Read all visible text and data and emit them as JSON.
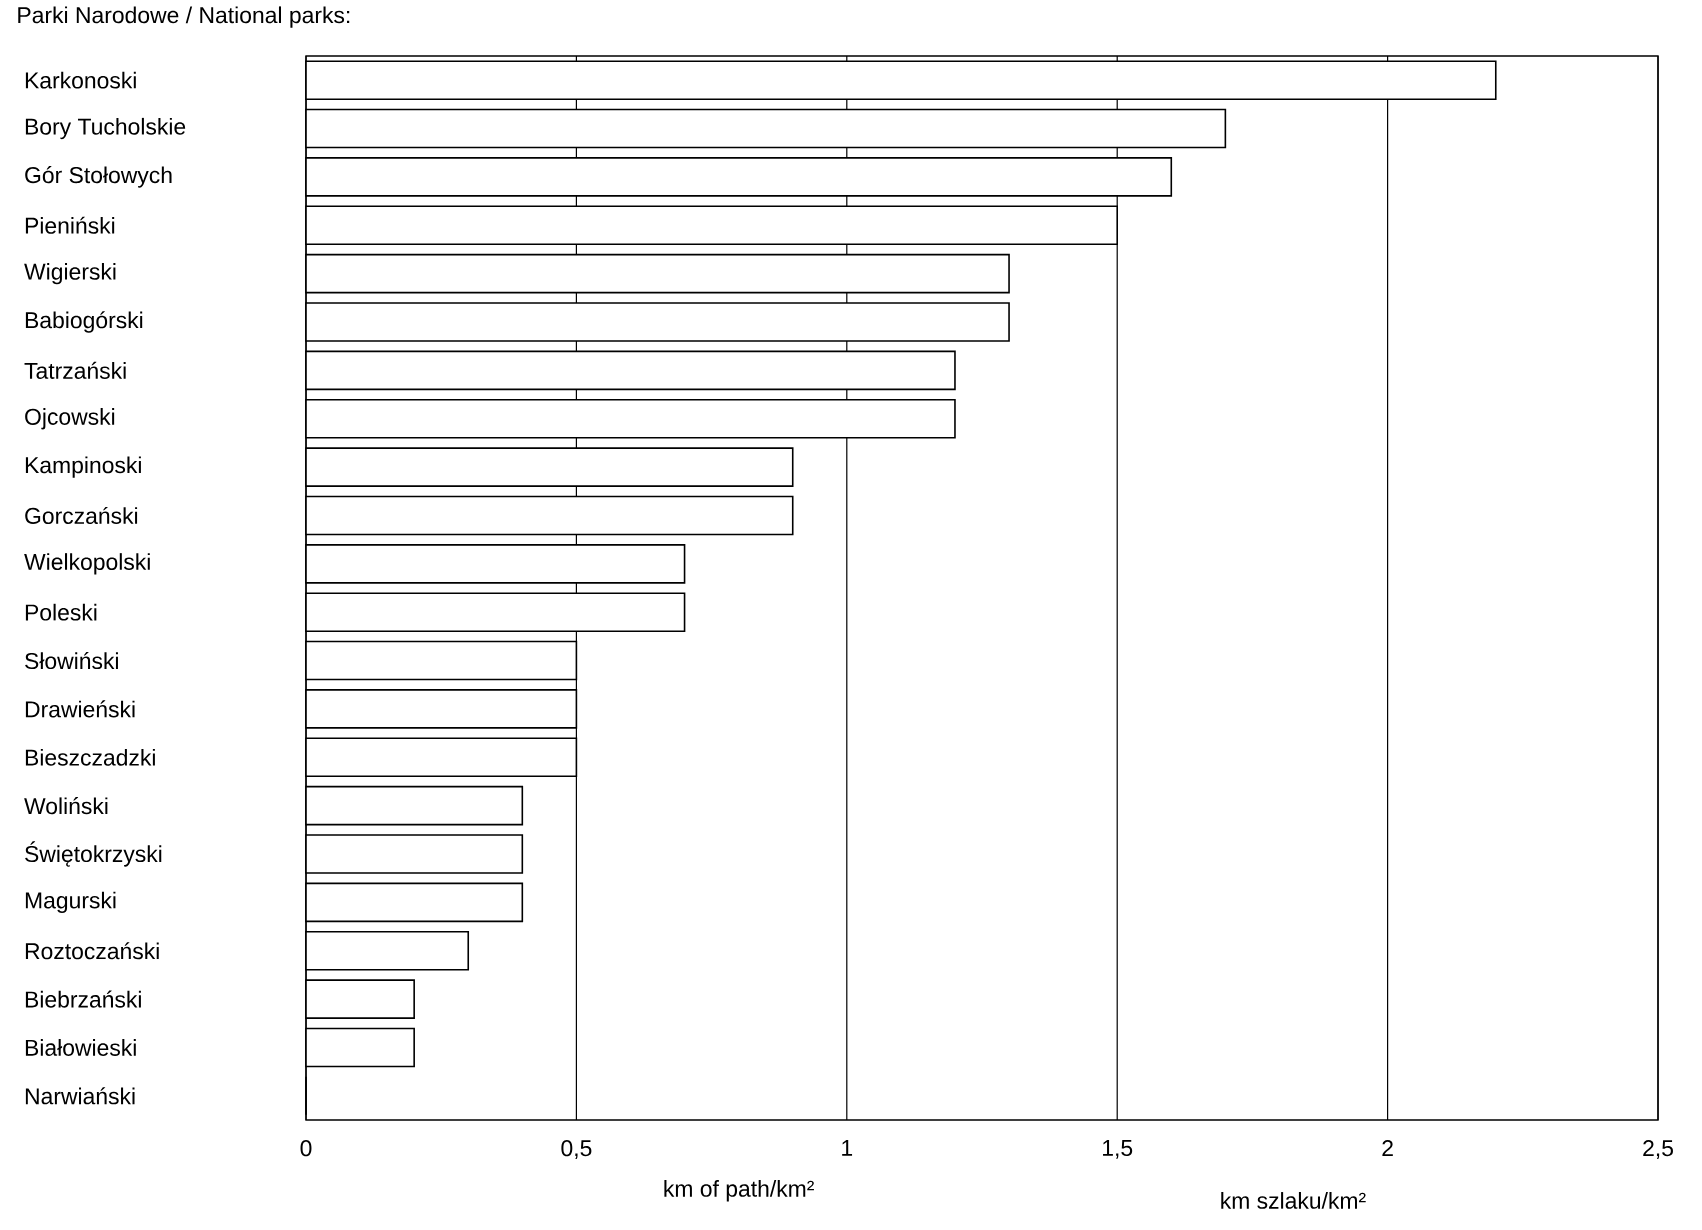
{
  "chart_data": {
    "type": "bar",
    "orientation": "horizontal",
    "title": "Parki Narodowe / National parks:",
    "xlabel": "km of path/km²",
    "annotations": [
      "km szlaku/km²"
    ],
    "categories": [
      "Karkonoski",
      "Bory Tucholskie",
      "Gór Stołowych",
      "Pieniński",
      "Wigierski",
      "Babiogórski",
      "Tatrzański",
      "Ojcowski",
      "Kampinoski",
      "Gorczański",
      "Wielkopolski",
      "Poleski",
      "Słowiński",
      "Drawieński",
      "Bieszczadzki",
      "Woliński",
      "Świętokrzyski",
      "Magurski",
      "Roztoczański",
      "Biebrzański",
      "Białowieski",
      "Narwiański"
    ],
    "values": [
      2.2,
      1.7,
      1.6,
      1.5,
      1.3,
      1.3,
      1.2,
      1.2,
      0.9,
      0.9,
      0.7,
      0.7,
      0.5,
      0.5,
      0.5,
      0.4,
      0.4,
      0.4,
      0.3,
      0.2,
      0.2,
      0
    ],
    "color": "#000000",
    "xlim": [
      0,
      2.5
    ],
    "xticks": [
      0,
      {
        "value": 0.5,
        "label": "0,5"
      },
      1,
      {
        "value": 1.5,
        "label": "1,5"
      },
      2,
      {
        "value": 2.5,
        "label": "2,5"
      }
    ],
    "grid": "x"
  }
}
